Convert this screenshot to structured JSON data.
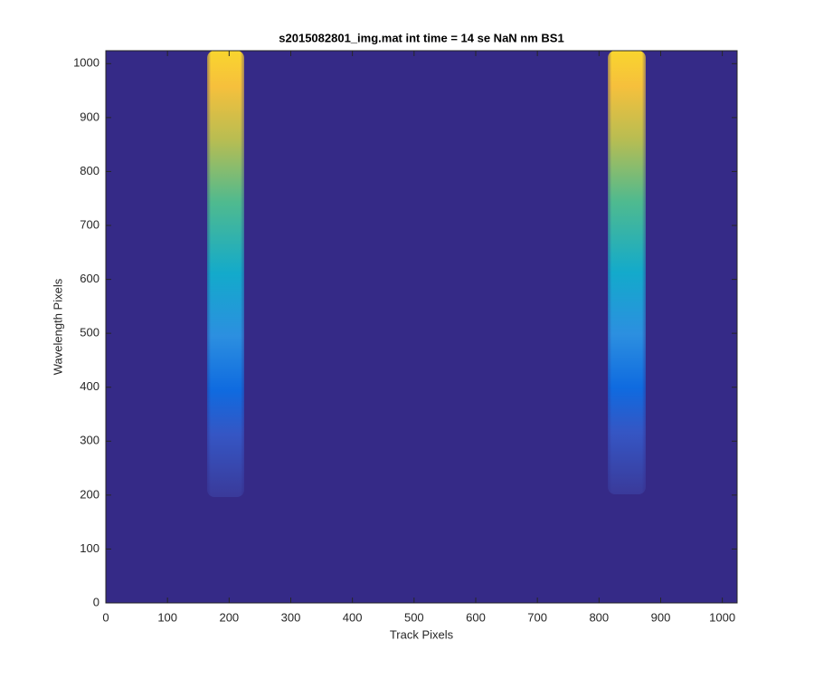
{
  "chart_data": {
    "type": "heatmap",
    "title": "s2015082801_img.mat int time = 14 se  NaN nm BS1",
    "xlabel": "Track Pixels",
    "ylabel": "Wavelength Pixels",
    "xlim": [
      0,
      1024
    ],
    "ylim": [
      0,
      1024
    ],
    "xticks": [
      0,
      100,
      200,
      300,
      400,
      500,
      600,
      700,
      800,
      900,
      1000
    ],
    "yticks": [
      0,
      100,
      200,
      300,
      400,
      500,
      600,
      700,
      800,
      900,
      1000
    ],
    "color": "#352a87"
  }
}
